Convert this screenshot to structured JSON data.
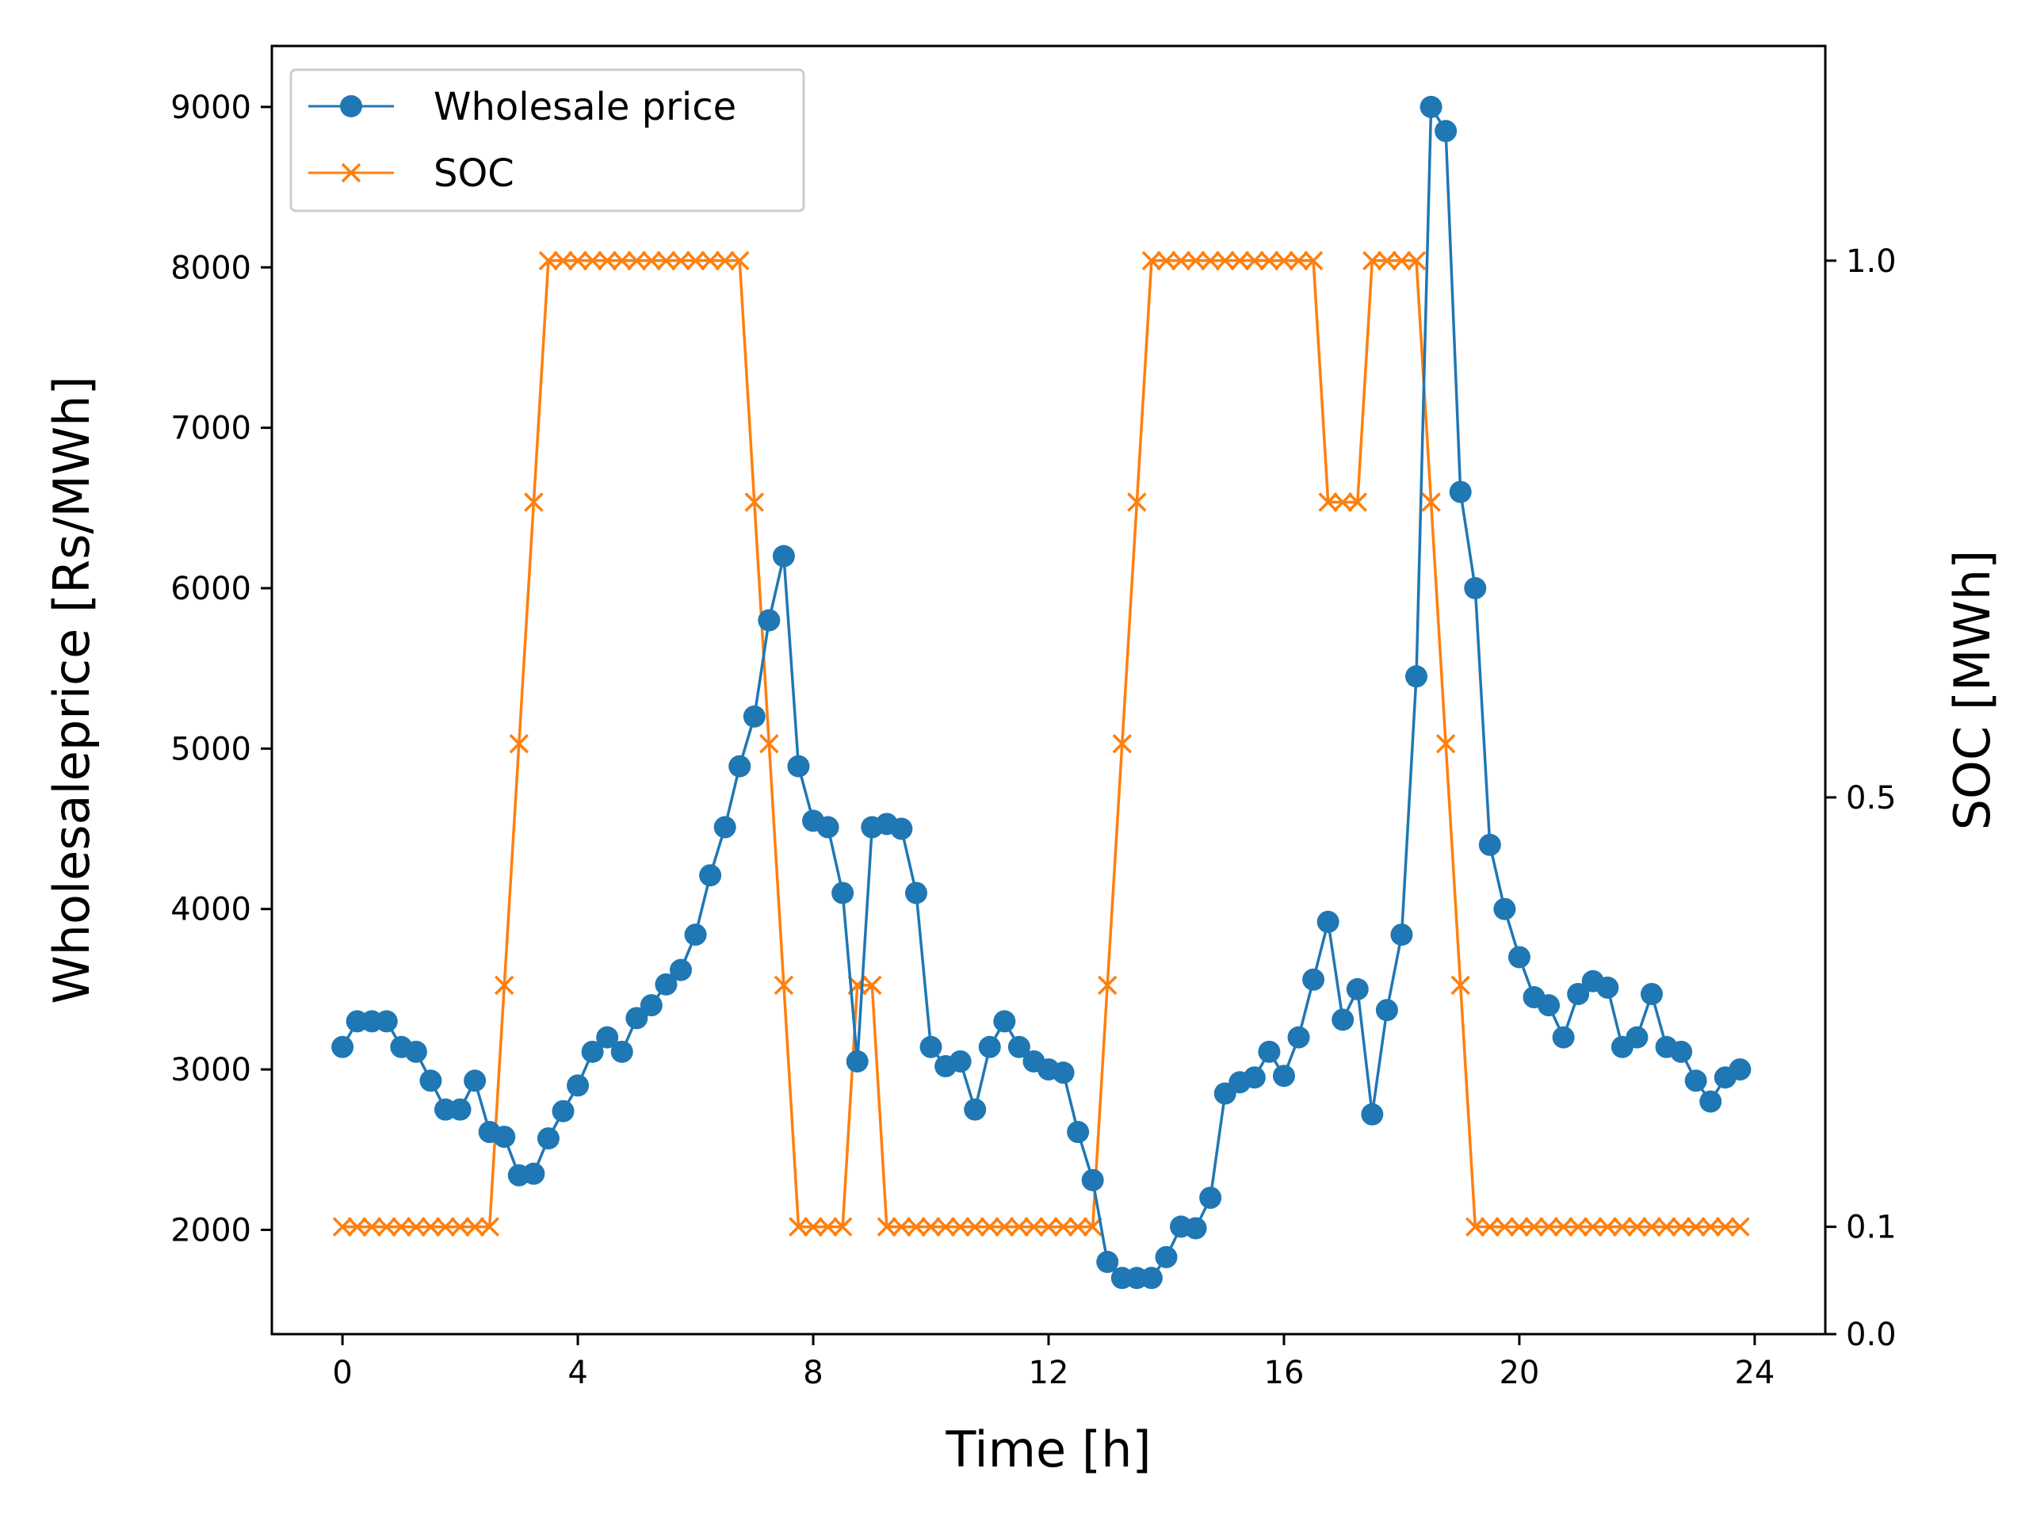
{
  "chart_data": {
    "type": "line",
    "xlabel": "Time [h]",
    "ylabel": "Wholesaleprice [Rs/MWh]",
    "y2label": "SOC [MWh]",
    "xlim": [
      -1.2,
      25.2
    ],
    "ylim": [
      1350,
      9380
    ],
    "y2lim": [
      0.0,
      1.2
    ],
    "x_ticks": [
      0,
      4,
      8,
      12,
      16,
      20,
      24
    ],
    "y_ticks": [
      2000,
      3000,
      4000,
      5000,
      6000,
      7000,
      8000,
      9000
    ],
    "y2_ticks": [
      0.0,
      0.1,
      0.5,
      1.0
    ],
    "y2_tick_labels": [
      "0.0",
      "0.1",
      "0.5",
      "1.0"
    ],
    "legend_position": "upper-left",
    "grid": false,
    "x": [
      0,
      0.25,
      0.5,
      0.75,
      1,
      1.25,
      1.5,
      1.75,
      2,
      2.25,
      2.5,
      2.75,
      3,
      3.25,
      3.5,
      3.75,
      4,
      4.25,
      4.5,
      4.75,
      5,
      5.25,
      5.5,
      5.75,
      6,
      6.25,
      6.5,
      6.75,
      7,
      7.25,
      7.5,
      7.75,
      8,
      8.25,
      8.5,
      8.75,
      9,
      9.25,
      9.5,
      9.75,
      10,
      10.25,
      10.5,
      10.75,
      11,
      11.25,
      11.5,
      11.75,
      12,
      12.25,
      12.5,
      12.75,
      13,
      13.25,
      13.5,
      13.75,
      14,
      14.25,
      14.5,
      14.75,
      15,
      15.25,
      15.5,
      15.75,
      16,
      16.25,
      16.5,
      16.75,
      17,
      17.25,
      17.5,
      17.75,
      18,
      18.25,
      18.5,
      18.75,
      19,
      19.25,
      19.5,
      19.75,
      20,
      20.25,
      20.5,
      20.75,
      21,
      21.25,
      21.5,
      21.75,
      22,
      22.25,
      22.5,
      22.75,
      23,
      23.25,
      23.5,
      23.75
    ],
    "series": [
      {
        "name": "Wholesale price",
        "color": "#1f77b4",
        "marker": "circle",
        "axis": "left",
        "values": [
          3140,
          3300,
          3300,
          3300,
          3140,
          3110,
          2930,
          2750,
          2750,
          2930,
          2610,
          2580,
          2340,
          2350,
          2570,
          2740,
          2900,
          3110,
          3200,
          3110,
          3320,
          3400,
          3530,
          3620,
          3840,
          4210,
          4510,
          4890,
          5200,
          5800,
          6200,
          4890,
          4550,
          4510,
          4100,
          3050,
          4510,
          4530,
          4500,
          4100,
          3140,
          3020,
          3050,
          2750,
          3140,
          3300,
          3140,
          3050,
          3000,
          2980,
          2610,
          2310,
          1800,
          1700,
          1700,
          1700,
          1830,
          2020,
          2010,
          2200,
          2850,
          2920,
          2950,
          3110,
          2960,
          3200,
          3560,
          3920,
          3310,
          3500,
          2720,
          3370,
          3840,
          5450,
          9000,
          8850,
          6600,
          6000,
          4400,
          4000,
          3700,
          3450,
          3400,
          3200,
          3470,
          3550,
          3510,
          3140,
          3200,
          3470,
          3140,
          3110,
          2930,
          2800,
          2950,
          3000
        ]
      },
      {
        "name": "SOC",
        "color": "#ff7f0e",
        "marker": "x",
        "axis": "right",
        "values": [
          0.1,
          0.1,
          0.1,
          0.1,
          0.1,
          0.1,
          0.1,
          0.1,
          0.1,
          0.1,
          0.1,
          0.325,
          0.55,
          0.775,
          1.0,
          1.0,
          1.0,
          1.0,
          1.0,
          1.0,
          1.0,
          1.0,
          1.0,
          1.0,
          1.0,
          1.0,
          1.0,
          1.0,
          0.775,
          0.55,
          0.325,
          0.1,
          0.1,
          0.1,
          0.1,
          0.325,
          0.325,
          0.1,
          0.1,
          0.1,
          0.1,
          0.1,
          0.1,
          0.1,
          0.1,
          0.1,
          0.1,
          0.1,
          0.1,
          0.1,
          0.1,
          0.1,
          0.325,
          0.55,
          0.775,
          1.0,
          1.0,
          1.0,
          1.0,
          1.0,
          1.0,
          1.0,
          1.0,
          1.0,
          1.0,
          1.0,
          1.0,
          0.775,
          0.775,
          0.775,
          1.0,
          1.0,
          1.0,
          1.0,
          0.775,
          0.55,
          0.325,
          0.1,
          0.1,
          0.1,
          0.1,
          0.1,
          0.1,
          0.1,
          0.1,
          0.1,
          0.1,
          0.1,
          0.1,
          0.1,
          0.1,
          0.1,
          0.1,
          0.1,
          0.1,
          0.1
        ]
      }
    ]
  }
}
